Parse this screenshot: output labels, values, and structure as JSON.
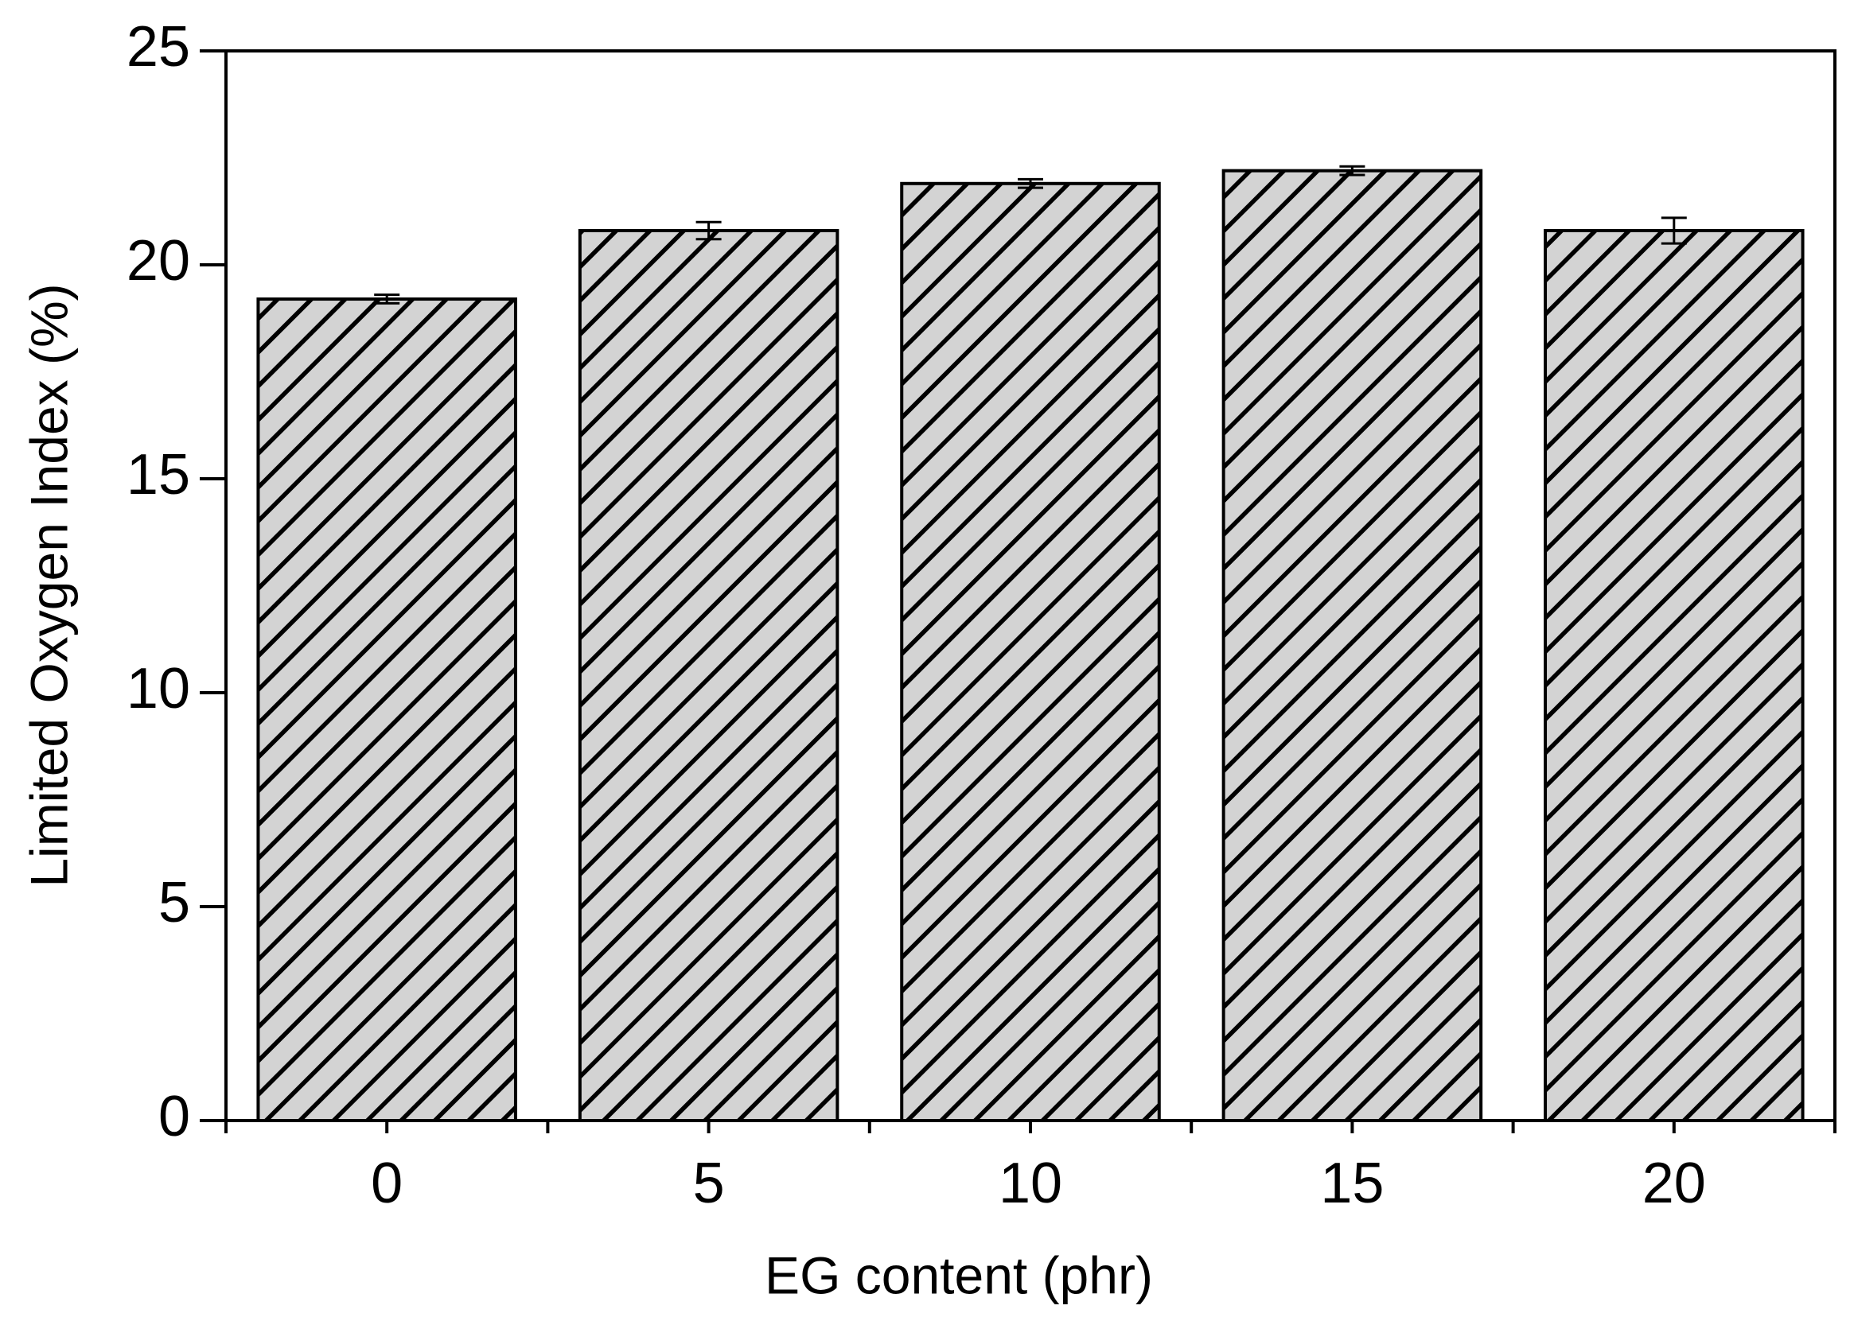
{
  "chart_data": {
    "type": "bar",
    "x_label": "EG content (phr)",
    "y_label": "Limited Oxygen Index (%)",
    "categories": [
      "0",
      "5",
      "10",
      "15",
      "20"
    ],
    "values": [
      19.2,
      20.8,
      21.9,
      22.2,
      20.8
    ],
    "errors": [
      0.1,
      0.2,
      0.1,
      0.1,
      0.3
    ],
    "color": "#d3d3d3",
    "ylim": [
      0,
      25
    ],
    "yticks": [
      0,
      5,
      10,
      15,
      20,
      25
    ],
    "grid": false
  }
}
